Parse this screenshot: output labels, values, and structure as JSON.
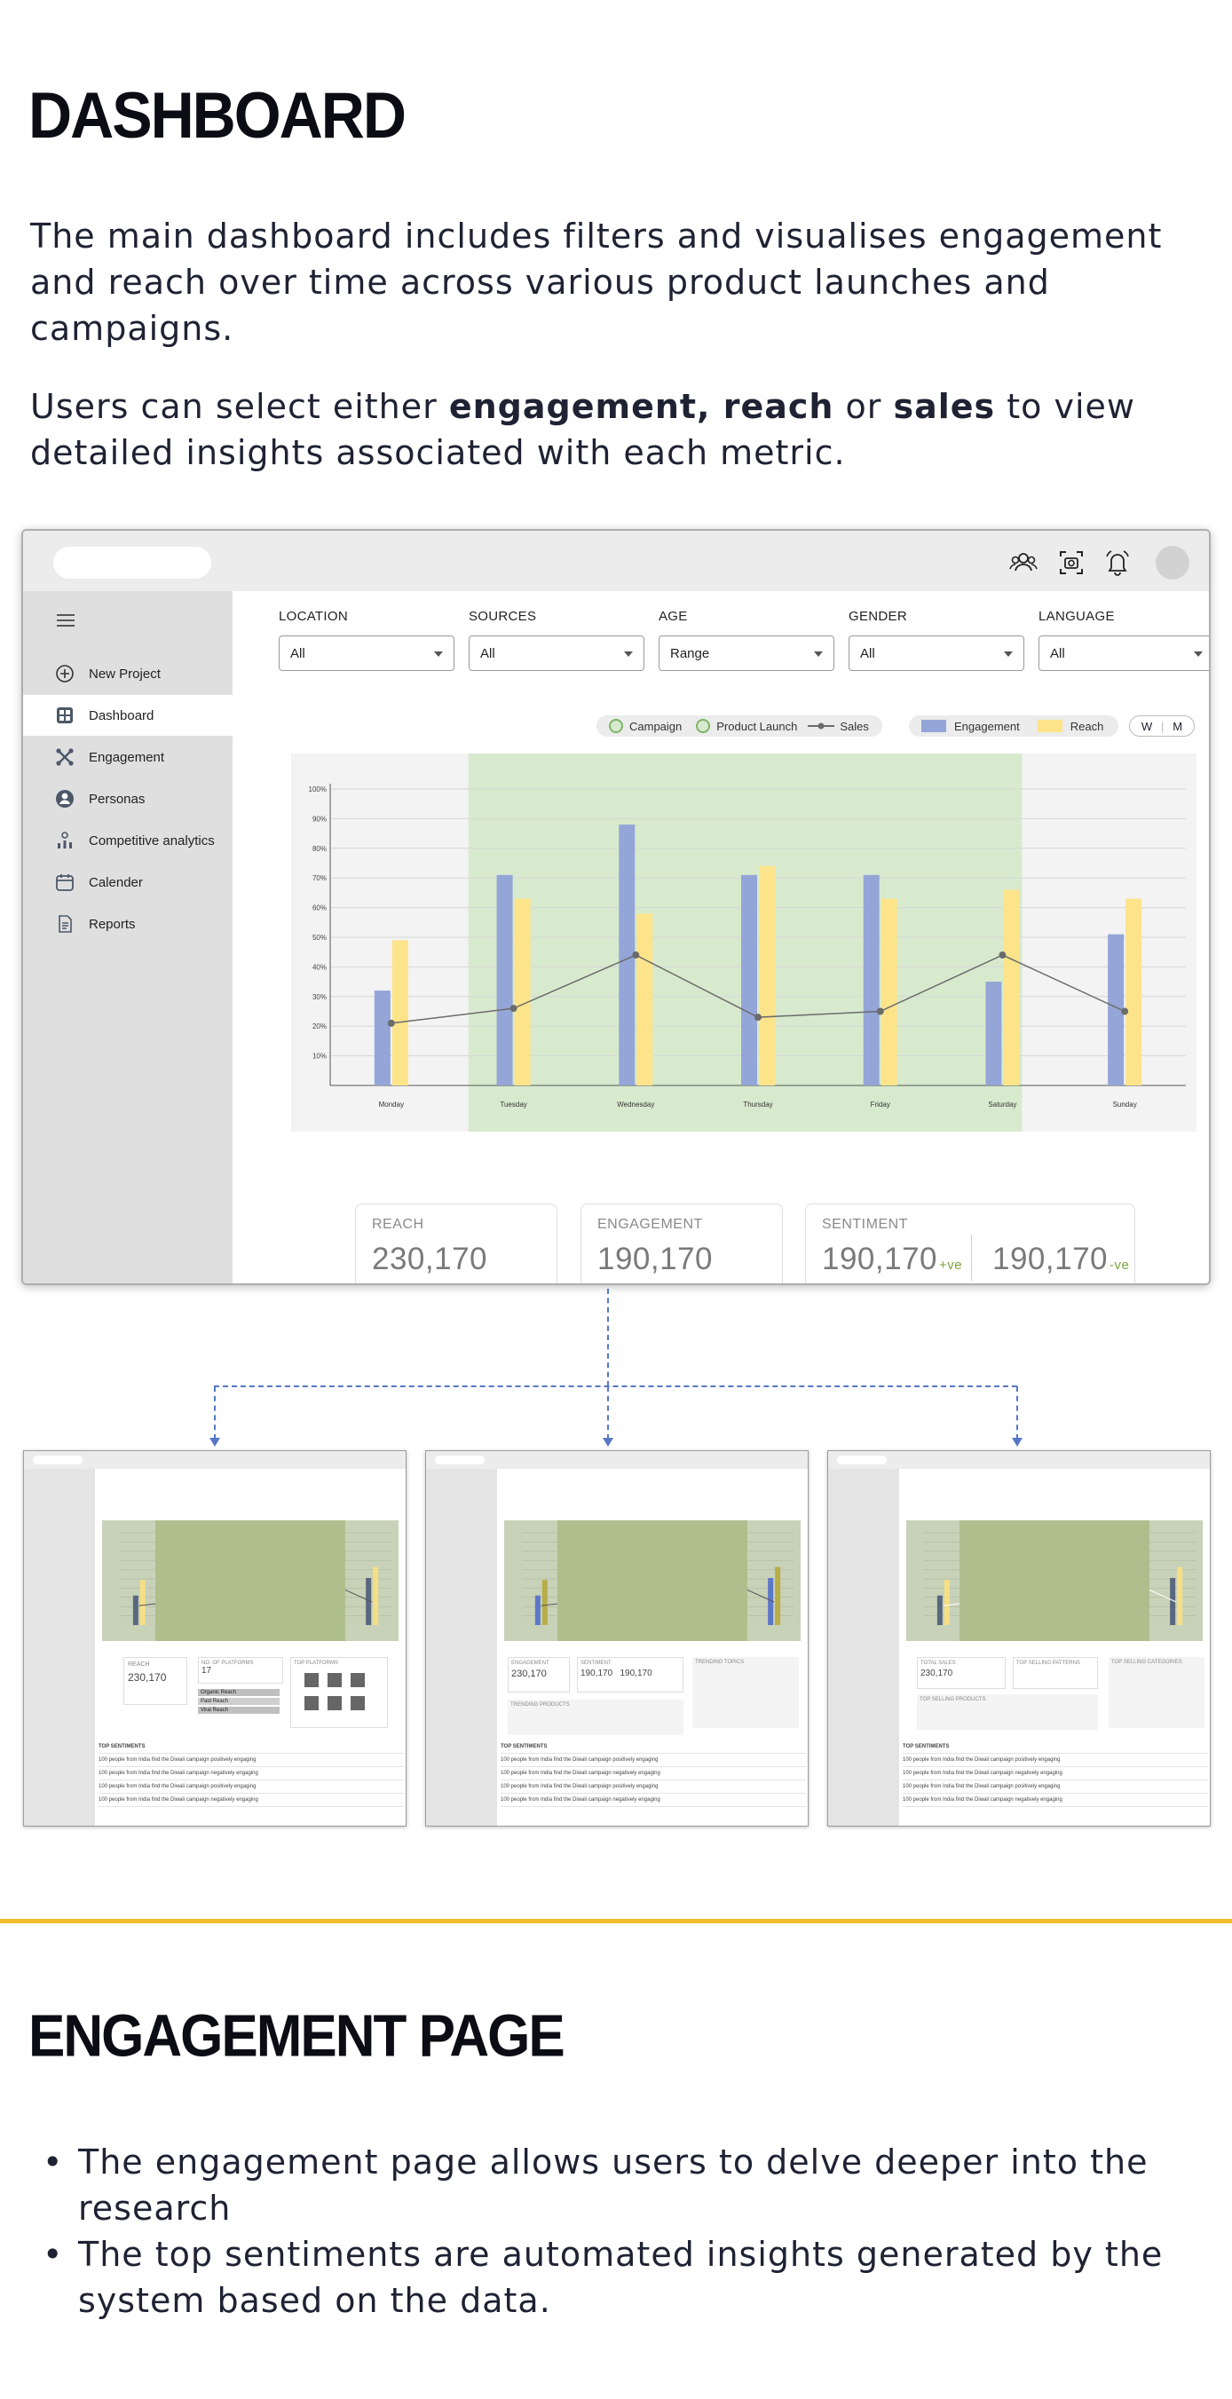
{
  "dashboard_section": {
    "title": "DASHBOARD",
    "para1": "The main dashboard includes filters and visualises engagement and reach over time across various product launches and campaigns.",
    "para2_prefix": "Users can select either ",
    "para2_bold1": "engagement, reach",
    "para2_mid": " or ",
    "para2_bold2": "sales",
    "para2_suffix": " to view detailed insights associated with each metric."
  },
  "mockup": {
    "topbar_icons": [
      "users-icon",
      "camera-icon",
      "bell-icon",
      "avatar"
    ],
    "sidebar": [
      {
        "label": "New Project",
        "icon": "plus-circle-icon"
      },
      {
        "label": "Dashboard",
        "icon": "grid-icon",
        "active": true
      },
      {
        "label": "Engagement",
        "icon": "engagement-icon"
      },
      {
        "label": "Personas",
        "icon": "person-icon"
      },
      {
        "label": "Competitive analytics",
        "icon": "analytics-icon"
      },
      {
        "label": "Calender",
        "icon": "calendar-icon"
      },
      {
        "label": "Reports",
        "icon": "report-icon"
      }
    ],
    "filters": [
      {
        "label": "LOCATION",
        "value": "All"
      },
      {
        "label": "SOURCES",
        "value": "All"
      },
      {
        "label": "AGE",
        "value": "Range"
      },
      {
        "label": "GENDER",
        "value": "All"
      },
      {
        "label": "LANGUAGE",
        "value": "All"
      }
    ],
    "legend": {
      "campaign": "Campaign",
      "product_launch": "Product Launch",
      "sales": "Sales",
      "engagement": "Engagement",
      "reach": "Reach"
    },
    "toggle": {
      "w": "W",
      "m": "M"
    },
    "cards": {
      "reach_title": "REACH",
      "reach_value": "230,170",
      "engagement_title": "ENGAGEMENT",
      "engagement_value": "190,170",
      "sentiment_title": "SENTIMENT",
      "sentiment_pos": "190,170",
      "sentiment_pos_suffix": "+ve",
      "sentiment_neg": "190,170",
      "sentiment_neg_suffix": "-ve"
    },
    "colors": {
      "engagement": "#94a5d8",
      "reach": "#fde48b",
      "highlight": "#d8eace",
      "sales": "#6b6b6b"
    }
  },
  "chart_data": {
    "type": "bar",
    "categories": [
      "Monday",
      "Tuesday",
      "Wednesday",
      "Thursday",
      "Friday",
      "Saturday",
      "Sunday"
    ],
    "ytick_labels": [
      "10%",
      "20%",
      "30%",
      "40%",
      "50%",
      "60%",
      "70%",
      "80%",
      "90%",
      "100%"
    ],
    "ylim": [
      0,
      100
    ],
    "series": [
      {
        "name": "Engagement",
        "values": [
          32,
          71,
          88,
          71,
          71,
          35,
          51
        ]
      },
      {
        "name": "Reach",
        "values": [
          49,
          63,
          58,
          74,
          63,
          66,
          63
        ]
      },
      {
        "name": "Sales",
        "type": "line",
        "values": [
          21,
          26,
          44,
          23,
          25,
          44,
          25
        ]
      }
    ],
    "highlight_range": [
      "Tuesday",
      "Saturday"
    ],
    "legend": "top-right"
  },
  "thumbnails": {
    "t1": {
      "reach_label": "REACH",
      "reach_value": "230,170",
      "platforms_label": "NO. OF PLATFORMS",
      "platforms_value": "17",
      "top_platforms": "TOP PLATFORMS",
      "organic": "Organic Reach",
      "paid": "Paid Reach",
      "viral": "Viral Reach"
    },
    "t2": {
      "engagement_label": "ENGAGEMENT",
      "engagement_value": "230,170",
      "sentiment_label": "SENTIMENT",
      "s1": "190,170",
      "s2": "190,170",
      "trending": "TRENDING TOPICS",
      "products": "TRENDING PRODUCTS"
    },
    "t3": {
      "sales_label": "TOTAL SALES",
      "sales_value": "230,170",
      "top_selling": "TOP SELLING PATTERNS",
      "top_categories": "TOP SELLING CATEGORIES",
      "top_products": "TOP SELLING PRODUCTS"
    },
    "table_header": "TOP SENTIMENTS",
    "rows": [
      "100 people from India find the Diwali campaign positively engaging",
      "100 people from India find the Diwali campaign negatively engaging",
      "100 people from India find the Diwali campaign positively engaging",
      "100 people from India find the Diwali campaign negatively engaging"
    ]
  },
  "engagement_section": {
    "title": "ENGAGEMENT PAGE",
    "bullets": [
      "The engagement page allows users to delve deeper into the research",
      "The top sentiments are automated insights generated by the system based on the data."
    ]
  }
}
